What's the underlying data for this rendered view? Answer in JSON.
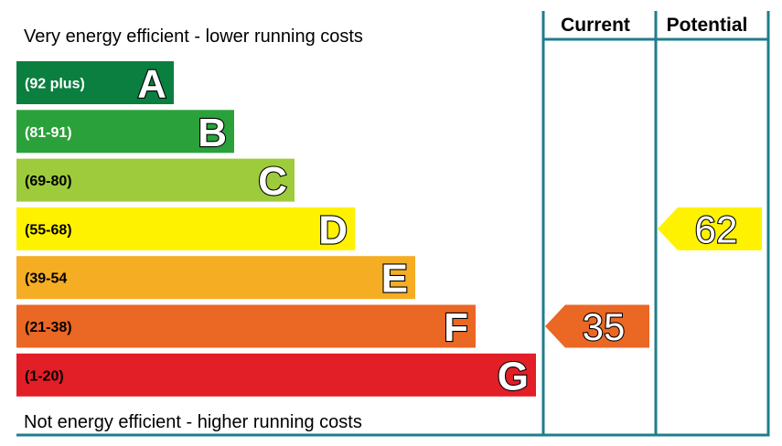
{
  "chart_data": {
    "type": "bar",
    "top_caption": "Very energy efficient - lower running costs",
    "bottom_caption": "Not energy efficient - higher running costs",
    "columns": {
      "current": "Current",
      "potential": "Potential"
    },
    "bands": [
      {
        "letter": "A",
        "range": "(92 plus)",
        "min": 92,
        "max": 100,
        "color": "#0a7f3f",
        "label_color": "#ffffff"
      },
      {
        "letter": "B",
        "range": "(81-91)",
        "min": 81,
        "max": 91,
        "color": "#2aa13a",
        "label_color": "#ffffff"
      },
      {
        "letter": "C",
        "range": "(69-80)",
        "min": 69,
        "max": 80,
        "color": "#9dcb3b",
        "label_color": "#000000"
      },
      {
        "letter": "D",
        "range": "(55-68)",
        "min": 55,
        "max": 68,
        "color": "#fff200",
        "label_color": "#000000"
      },
      {
        "letter": "E",
        "range": "(39-54",
        "min": 39,
        "max": 54,
        "color": "#f5ad23",
        "label_color": "#000000"
      },
      {
        "letter": "F",
        "range": "(21-38)",
        "min": 21,
        "max": 38,
        "color": "#ea6724",
        "label_color": "#000000"
      },
      {
        "letter": "G",
        "range": "(1-20)",
        "min": 1,
        "max": 20,
        "color": "#e21e26",
        "label_color": "#000000"
      }
    ],
    "current": {
      "value": 35,
      "label": "35",
      "band": "F",
      "color": "#ea6724"
    },
    "potential": {
      "value": 62,
      "label": "62",
      "band": "D",
      "color": "#fff200"
    },
    "border_color": "#1f7d8c"
  }
}
